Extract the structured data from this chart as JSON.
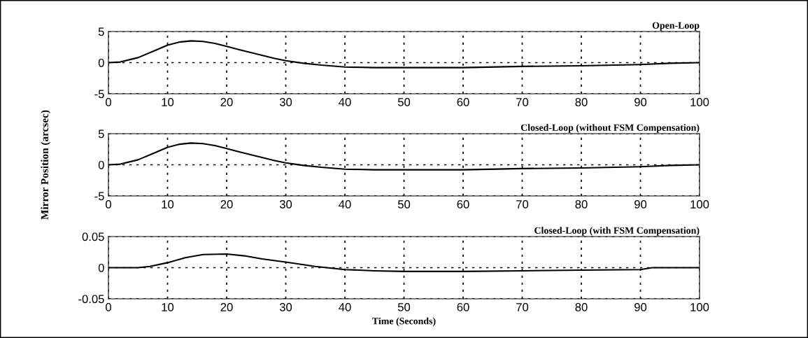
{
  "chart_data": [
    {
      "type": "line",
      "title": "Open-Loop",
      "x": [
        0,
        2,
        5,
        8,
        10,
        12,
        14,
        16,
        18,
        20,
        22,
        25,
        28,
        30,
        33,
        36,
        40,
        45,
        50,
        55,
        60,
        70,
        80,
        90,
        95,
        100
      ],
      "series": [
        {
          "color": "#000000",
          "values": [
            0,
            0.1,
            0.8,
            2.0,
            2.8,
            3.3,
            3.5,
            3.4,
            3.1,
            2.6,
            2.1,
            1.4,
            0.7,
            0.3,
            -0.1,
            -0.4,
            -0.7,
            -0.8,
            -0.8,
            -0.8,
            -0.8,
            -0.6,
            -0.5,
            -0.3,
            -0.1,
            0.0
          ]
        }
      ],
      "xlim": [
        0,
        100
      ],
      "xticks": [
        0,
        10,
        20,
        30,
        40,
        50,
        60,
        70,
        80,
        90,
        100
      ],
      "ylim": [
        -5,
        5
      ],
      "yticks": [
        -5,
        0,
        5
      ],
      "grid": true,
      "line_style": "solid",
      "marker": "none"
    },
    {
      "type": "line",
      "title": "Closed-Loop (without FSM Compensation)",
      "ylabel": "Mirror Position (arcsec)",
      "x": [
        0,
        2,
        5,
        8,
        10,
        12,
        14,
        16,
        18,
        20,
        22,
        25,
        28,
        30,
        33,
        36,
        40,
        45,
        50,
        55,
        60,
        70,
        80,
        90,
        95,
        100
      ],
      "series": [
        {
          "color": "#000000",
          "values": [
            0,
            0.1,
            0.8,
            2.0,
            2.8,
            3.3,
            3.5,
            3.4,
            3.1,
            2.6,
            2.1,
            1.4,
            0.7,
            0.3,
            -0.1,
            -0.4,
            -0.7,
            -0.8,
            -0.8,
            -0.8,
            -0.8,
            -0.6,
            -0.5,
            -0.3,
            -0.1,
            0.0
          ]
        }
      ],
      "xlim": [
        0,
        100
      ],
      "xticks": [
        0,
        10,
        20,
        30,
        40,
        50,
        60,
        70,
        80,
        90,
        100
      ],
      "ylim": [
        -5,
        5
      ],
      "yticks": [
        -5,
        0,
        5
      ],
      "grid": true,
      "line_style": "solid",
      "marker": "none"
    },
    {
      "type": "line",
      "title": "Closed-Loop (with FSM Compensation)",
      "xlabel": "Time (Seconds)",
      "x": [
        0,
        5,
        7,
        10,
        13,
        16,
        20,
        23,
        26,
        30,
        35,
        40,
        45,
        50,
        60,
        70,
        80,
        90,
        92,
        100
      ],
      "series": [
        {
          "color": "#000000",
          "values": [
            0,
            0,
            0.002,
            0.008,
            0.016,
            0.021,
            0.022,
            0.019,
            0.014,
            0.009,
            0.002,
            -0.003,
            -0.005,
            -0.006,
            -0.006,
            -0.005,
            -0.004,
            -0.003,
            0,
            0
          ]
        }
      ],
      "xlim": [
        0,
        100
      ],
      "xticks": [
        0,
        10,
        20,
        30,
        40,
        50,
        60,
        70,
        80,
        90,
        100
      ],
      "ylim": [
        -0.05,
        0.05
      ],
      "yticks": [
        -0.05,
        0,
        0.05
      ],
      "grid": true,
      "line_style": "solid",
      "marker": "none"
    }
  ]
}
